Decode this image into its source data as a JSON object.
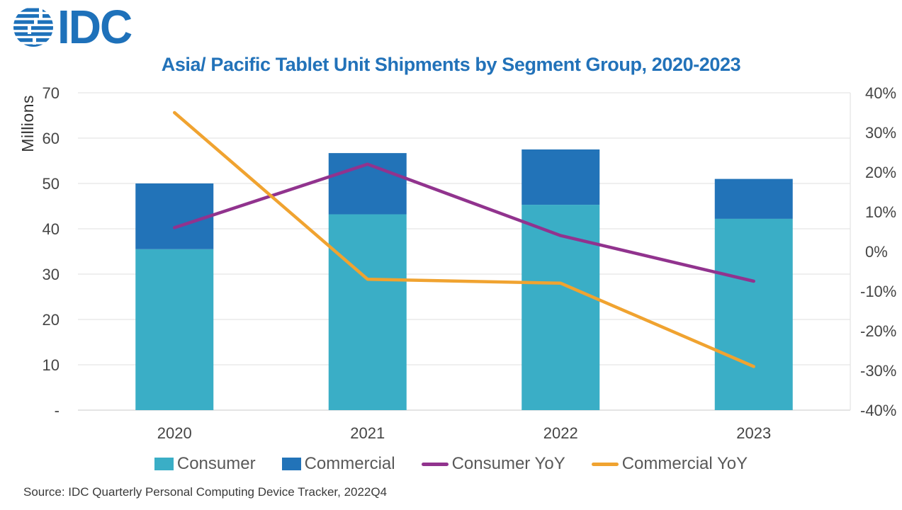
{
  "header": {
    "logo_text": "IDC"
  },
  "title": "Asia/ Pacific Tablet Unit Shipments by Segment Group, 2020-2023",
  "source": "Source: IDC Quarterly Personal Computing Device Tracker, 2022Q4",
  "colors": {
    "brand_blue": "#2272b9",
    "consumer_teal": "#3aaec6",
    "commercial_blue": "#2273b8",
    "consumer_yoy_purple": "#91338e",
    "commercial_yoy_orange": "#f0a330",
    "gridline": "#e5e5e5",
    "baseline": "#d4d4d4",
    "axis_text": "#454545",
    "legend_text": "#595959"
  },
  "chart_data": {
    "type": "bar",
    "subtype": "stacked-bar-with-lines",
    "title": "Asia/ Pacific Tablet Unit Shipments by Segment Group, 2020-2023",
    "categories": [
      "2020",
      "2021",
      "2022",
      "2023"
    ],
    "series": [
      {
        "name": "Consumer",
        "type": "bar",
        "axis": "left",
        "color": "#3aaec6",
        "values": [
          35.5,
          43.2,
          45.3,
          42.2
        ]
      },
      {
        "name": "Commercial",
        "type": "bar",
        "axis": "left",
        "color": "#2273b8",
        "values": [
          14.5,
          13.5,
          12.2,
          8.8
        ]
      },
      {
        "name": "Consumer YoY",
        "type": "line",
        "axis": "right",
        "color": "#91338e",
        "values": [
          6,
          22,
          4,
          -7.5
        ]
      },
      {
        "name": "Commercial YoY",
        "type": "line",
        "axis": "right",
        "color": "#f0a330",
        "values": [
          35,
          -7,
          -8,
          -29
        ]
      }
    ],
    "left_axis": {
      "label": "Millions",
      "min": 0,
      "max": 70,
      "step": 10,
      "tick_labels": [
        "70",
        "60",
        "50",
        "40",
        "30",
        "20",
        "10",
        "-"
      ]
    },
    "right_axis": {
      "min": -40,
      "max": 40,
      "step": 10,
      "tick_labels": [
        "40%",
        "30%",
        "20%",
        "10%",
        "0%",
        "-10%",
        "-20%",
        "-30%",
        "-40%"
      ]
    },
    "grid": "horizontal",
    "legend_position": "bottom"
  }
}
